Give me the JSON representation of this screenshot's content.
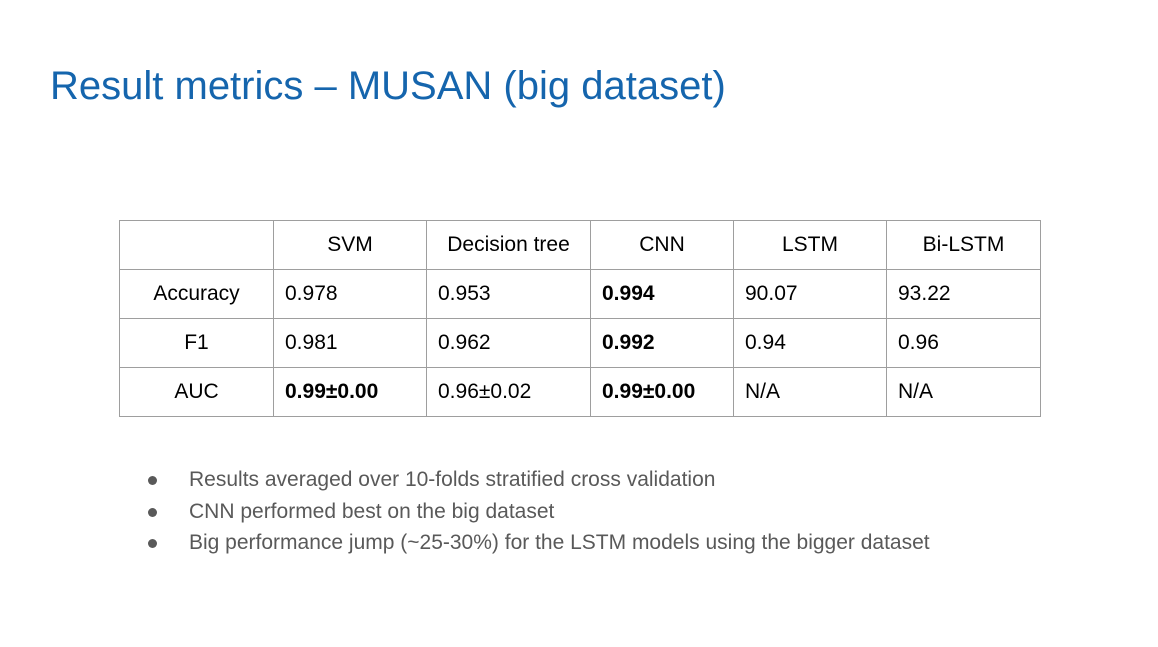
{
  "title": "Result metrics – MUSAN (big dataset)",
  "table": {
    "columns": [
      "",
      "SVM",
      "Decision tree",
      "CNN",
      "LSTM",
      "Bi-LSTM"
    ],
    "rows": [
      {
        "metric": "Accuracy",
        "values": [
          "0.978",
          "0.953",
          "0.994",
          "90.07",
          "93.22"
        ],
        "bold": [
          false,
          false,
          true,
          false,
          false
        ]
      },
      {
        "metric": "F1",
        "values": [
          "0.981",
          "0.962",
          "0.992",
          "0.94",
          "0.96"
        ],
        "bold": [
          false,
          false,
          true,
          false,
          false
        ]
      },
      {
        "metric": "AUC",
        "values": [
          "0.99±0.00",
          "0.96±0.02",
          "0.99±0.00",
          "N/A",
          "N/A"
        ],
        "bold": [
          true,
          false,
          true,
          false,
          false
        ]
      }
    ]
  },
  "bullets": [
    "Results averaged over 10-folds stratified cross validation",
    "CNN performed best on the big dataset",
    "Big performance jump (~25-30%) for the LSTM models using the bigger dataset"
  ],
  "colors": {
    "title": "#1565ad",
    "bullet_text": "#595959",
    "table_border": "#9e9e9e"
  }
}
